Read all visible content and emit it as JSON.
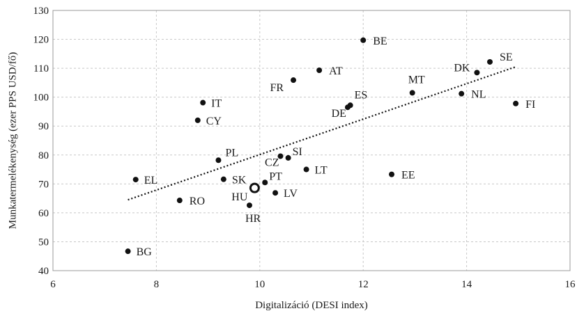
{
  "chart_data": {
    "type": "scatter",
    "title": "",
    "xlabel": "Digitalizáció (DESI index)",
    "ylabel": "Munkatermelékenység (ezer PPS USD/fő)",
    "xlim": [
      6,
      16
    ],
    "ylim": [
      40,
      130
    ],
    "x_ticks": [
      "6",
      "8",
      "10",
      "12",
      "14",
      "16"
    ],
    "y_ticks": [
      "40",
      "50",
      "60",
      "70",
      "80",
      "90",
      "100",
      "110",
      "120",
      "130"
    ],
    "grid": true,
    "colors": {
      "point": "#111111",
      "highlight_fill": "#ffffff",
      "trend": "#111111"
    },
    "trendline": {
      "style": "dotted",
      "x": [
        7.45,
        14.95
      ],
      "y": [
        64.5,
        110.5
      ]
    },
    "points": [
      {
        "label": "BE",
        "x": 12.0,
        "y": 119.7
      },
      {
        "label": "SE",
        "x": 14.45,
        "y": 112.2
      },
      {
        "label": "DK",
        "x": 14.2,
        "y": 108.5
      },
      {
        "label": "AT",
        "x": 11.15,
        "y": 109.3
      },
      {
        "label": "FR",
        "x": 10.65,
        "y": 105.9
      },
      {
        "label": "MT",
        "x": 12.95,
        "y": 101.5
      },
      {
        "label": "NL",
        "x": 13.9,
        "y": 101.2
      },
      {
        "label": "FI",
        "x": 14.95,
        "y": 97.8
      },
      {
        "label": "IT",
        "x": 8.9,
        "y": 98.1
      },
      {
        "label": "ES",
        "x": 11.75,
        "y": 97.2
      },
      {
        "label": "DE",
        "x": 11.7,
        "y": 96.5
      },
      {
        "label": "CY",
        "x": 8.8,
        "y": 92.0
      },
      {
        "label": "PL",
        "x": 9.2,
        "y": 78.2
      },
      {
        "label": "CZ",
        "x": 10.4,
        "y": 79.6
      },
      {
        "label": "SI",
        "x": 10.55,
        "y": 79.0
      },
      {
        "label": "LT",
        "x": 10.9,
        "y": 75.0
      },
      {
        "label": "EE",
        "x": 12.55,
        "y": 73.3
      },
      {
        "label": "EL",
        "x": 7.6,
        "y": 71.5
      },
      {
        "label": "SK",
        "x": 9.3,
        "y": 71.6
      },
      {
        "label": "PT",
        "x": 10.1,
        "y": 70.5
      },
      {
        "label": "HU",
        "x": 9.9,
        "y": 68.6,
        "highlight": true
      },
      {
        "label": "LV",
        "x": 10.3,
        "y": 66.9
      },
      {
        "label": "RO",
        "x": 8.45,
        "y": 64.3
      },
      {
        "label": "HR",
        "x": 9.8,
        "y": 62.6
      },
      {
        "label": "BG",
        "x": 7.45,
        "y": 46.7
      }
    ]
  }
}
